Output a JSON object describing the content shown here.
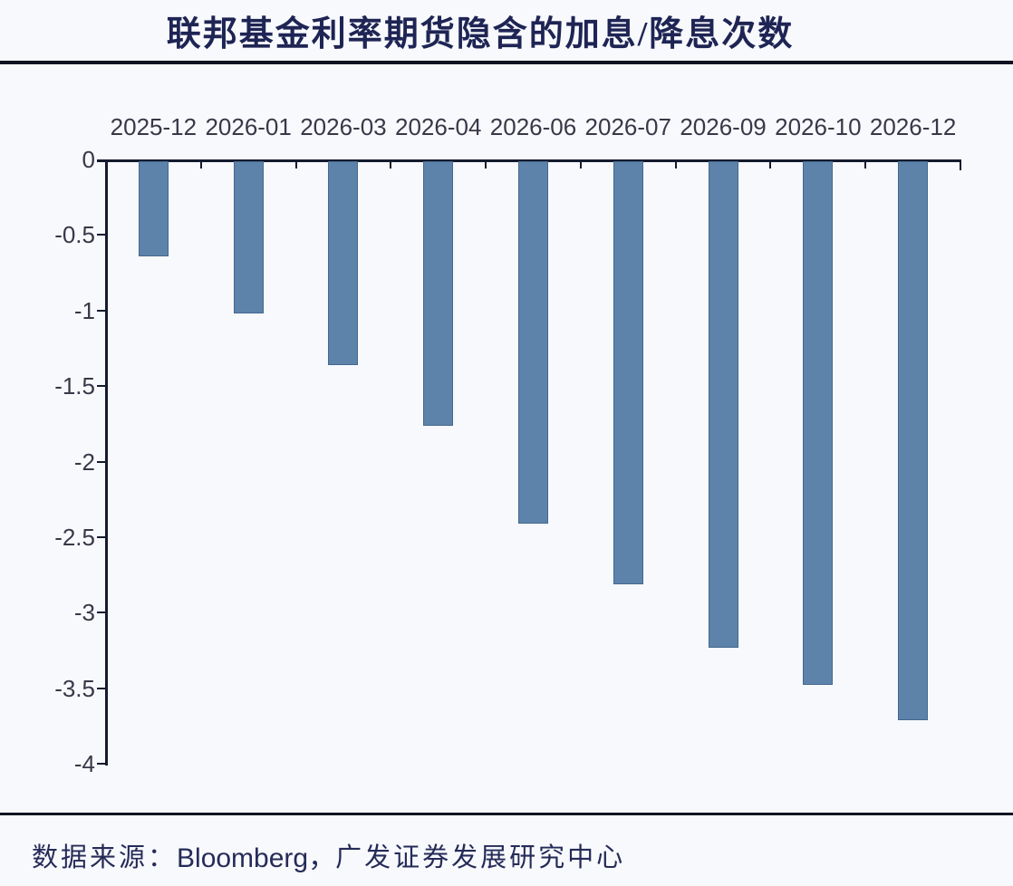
{
  "colors": {
    "background": "#f8f9fd",
    "bar_fill": "#5d83aa",
    "bar_border": "#44688f",
    "axis": "#141b2e",
    "title_text": "#1e2554",
    "tick_label": "#3a3748",
    "footer_text": "#252b58",
    "rule": "#0d1322"
  },
  "chart_data": {
    "type": "bar",
    "title": "联邦基金利率期货隐含的加息/降息次数",
    "categories": [
      "2025-12",
      "2026-01",
      "2026-03",
      "2026-04",
      "2026-06",
      "2026-07",
      "2026-09",
      "2026-10",
      "2026-12"
    ],
    "values": [
      -0.64,
      -1.02,
      -1.36,
      -1.76,
      -2.41,
      -2.81,
      -3.23,
      -3.48,
      -3.71
    ],
    "xlabel": "",
    "ylabel": "",
    "ylim": [
      -4,
      0
    ],
    "yticks": [
      0,
      -0.5,
      -1,
      -1.5,
      -2,
      -2.5,
      -3,
      -3.5,
      -4
    ],
    "ytick_labels": [
      "0",
      "-0.5",
      "-1",
      "-1.5",
      "-2",
      "-2.5",
      "-3",
      "-3.5",
      "-4"
    ],
    "xaxis_position": "top",
    "grid": false,
    "legend": false
  },
  "footer": {
    "parts": [
      "数据来源：",
      "Bloomberg，",
      "广发证券发展研究中心"
    ]
  }
}
